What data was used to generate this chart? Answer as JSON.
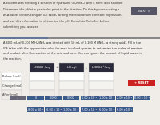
{
  "bg_color": "#e8e3dc",
  "header_bg": "#e8e3dc",
  "progress_bar_bg": "#888888",
  "progress_bar_fg": "#667799",
  "next_btn_color": "#555566",
  "next_btn_text": "NEXT >",
  "content_bg": "#f0ede8",
  "top_text_lines": [
    "A student was titrating a solution of hydrazine (H₂NNH₂) with a nitric acid solution.",
    "Determine the pH at a particular point in the titration. Do this by constructing a",
    "BCA table, constructing an ICE table, writing the equilibrium constant expression,",
    "and use this information to determine the pH. Complete Parts 1-4 before",
    "submitting your answer."
  ],
  "problem_text_lines": [
    "A 40.0 mL of 0.200 M H₂NNH₂ was titrated with 10 mL of 0.100 M HNO₃ (a strong acid). Fill in the",
    "ICE table with the appropriate value for each involved species to determine the moles of reactant",
    "and product after the reaction of the acid and base. You can ignore the amount of liquid water in",
    "the reaction."
  ],
  "col_headers": [
    "H₂NNH₂(aq)",
    "+",
    "H⁺(aq)",
    "→",
    "H₂NNH₃⁺(aq)"
  ],
  "row_labels": [
    "Before (mol)",
    "Change (mol)",
    "After (mol)"
  ],
  "table_header_bg": "#2a2a3a",
  "table_row_colors": [
    "#ffffff",
    "#f5f3f0",
    "#eeeae6"
  ],
  "table_border": "#bbbbbb",
  "reset_btn_color": "#cc2222",
  "reset_btn_text": "+ RESET",
  "answer_buttons_row1": [
    "--",
    "0",
    "0.000",
    "0.000",
    "1.00 x 10⁻²",
    "1.00 x 10⁻²",
    "2.00 x 10⁻²",
    "8.00 x 10⁻³"
  ],
  "answer_buttons_row2": [
    "-8.00 x 10⁻³",
    "-6.00 x 10⁻³",
    "1.00 x 10⁻³",
    "7.00 x 10⁻³",
    "6.00 x 10⁻³",
    "6.00 x 10⁻³"
  ],
  "btn_blue": "#3a5a8a",
  "btn_gray": "#666677",
  "btn_text_color": "#ffffff"
}
